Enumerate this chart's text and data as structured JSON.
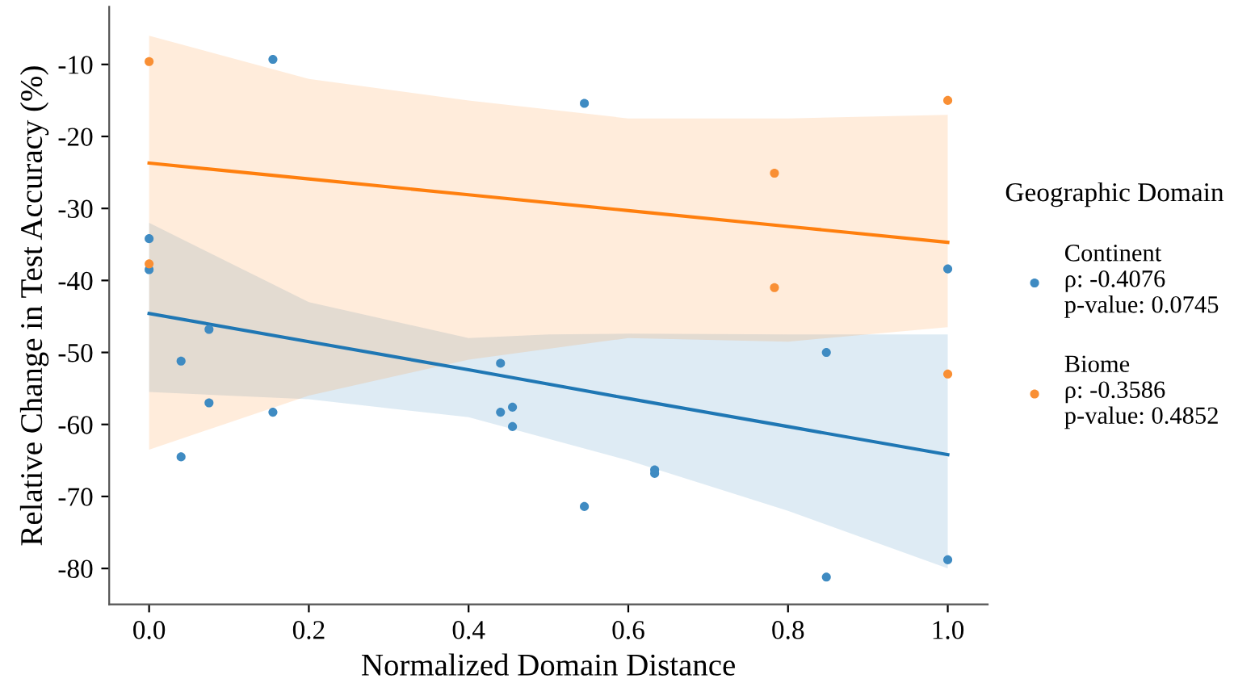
{
  "chart_data": {
    "type": "scatter",
    "xlabel": "Normalized Domain Distance",
    "ylabel": "Relative Change in Test Accuracy (%)",
    "legend_title": "Geographic Domain",
    "legend": "right",
    "grid": false,
    "xlim": [
      -0.05,
      1.05
    ],
    "ylim": [
      -85,
      -2
    ],
    "xticks": [
      {
        "value": 0,
        "label": "0.0"
      },
      0.2,
      0.4,
      0.6,
      0.8,
      {
        "value": 1,
        "label": "1.0"
      }
    ],
    "yticks": [
      -80,
      -70,
      -60,
      -50,
      -40,
      -30,
      -20,
      -10
    ],
    "series": [
      {
        "name": "Continent\nρ: -0.4076\np-value: 0.0745",
        "marker": "circle",
        "color": "#3f8bc2",
        "x": [
          0,
          0,
          0.04,
          0.04,
          0.075,
          0.075,
          0.155,
          0.155,
          0.44,
          0.44,
          0.455,
          0.455,
          0.545,
          0.545,
          0.633,
          0.633,
          0.848,
          0.848,
          1.0,
          1.0
        ],
        "values": [
          -34.2,
          -38.5,
          -51.2,
          -64.5,
          -46.8,
          -57,
          -9.3,
          -58.3,
          -51.5,
          -58.3,
          -57.6,
          -60.3,
          -15.4,
          -71.4,
          -66.3,
          -66.8,
          -50,
          -81.2,
          -38.4,
          -78.8
        ]
      },
      {
        "name": "Biome\nρ: -0.3586\np-value: 0.4852",
        "marker": "circle",
        "color": "#f98f34",
        "x": [
          0,
          0,
          0.783,
          0.783,
          1.0,
          1.0
        ],
        "values": [
          -9.6,
          -37.7,
          -25.1,
          -41,
          -15,
          -53
        ]
      },
      {
        "type": "line",
        "marker": "none",
        "color": "#1f77b4",
        "x": [
          0,
          0.2,
          0.4,
          0.5,
          0.6,
          0.8,
          1.0
        ],
        "values": [
          -44.6,
          -48.5,
          -52.4,
          -54.4,
          -56.4,
          -60.3,
          -64.2
        ],
        "lower": [
          -55.5,
          -56.5,
          -59,
          -62,
          -65,
          -72,
          -80
        ],
        "upper": [
          -32,
          -43,
          -48,
          -47.5,
          -47.4,
          -47.5,
          -47.5
        ]
      },
      {
        "type": "line",
        "marker": "none",
        "color": "#ff7f0e",
        "x": [
          0,
          0.2,
          0.4,
          0.6,
          0.8,
          1.0
        ],
        "values": [
          -23.7,
          -25.9,
          -28.1,
          -30.3,
          -32.5,
          -34.7
        ],
        "lower": [
          -63.5,
          -56,
          -51,
          -48,
          -48.5,
          -46.5
        ],
        "upper": [
          -6,
          -12,
          -15,
          -17.5,
          -17.5,
          -17
        ]
      }
    ]
  }
}
